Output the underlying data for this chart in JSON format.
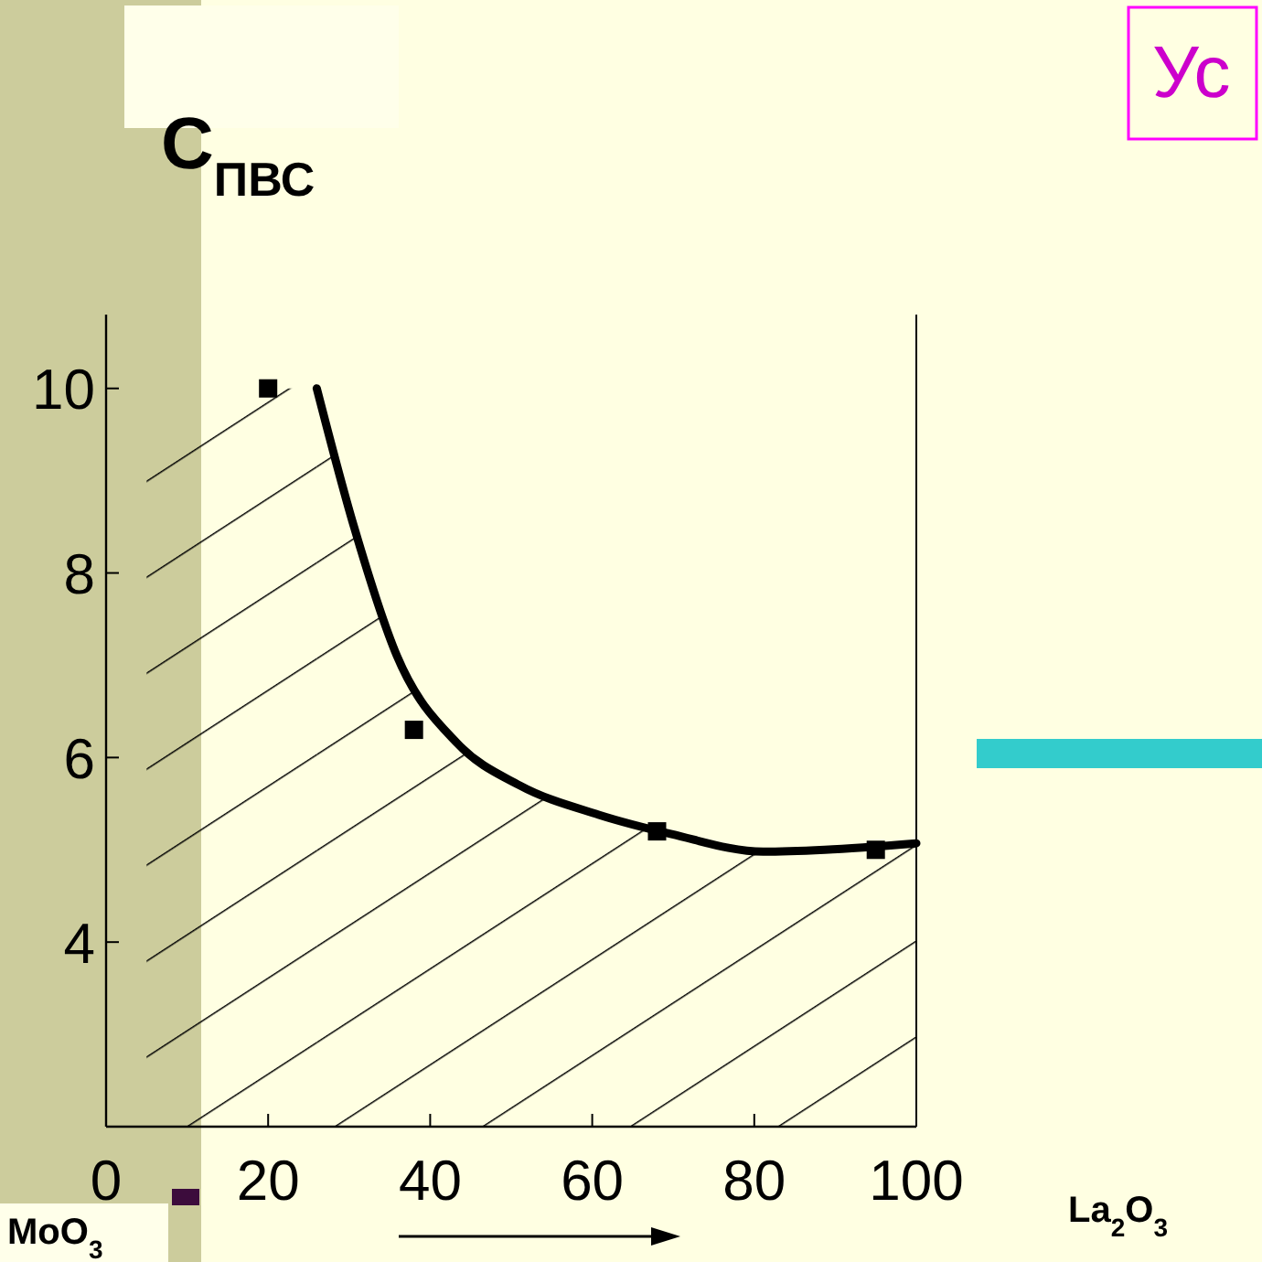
{
  "chart_data": {
    "type": "line",
    "ylabel": "C$_{ПВС}$",
    "xlabel": "La$_{2}$O$_{3}$",
    "annotations": [
      "MoO$_{3}$",
      "Ус"
    ],
    "xlim": [
      0,
      100
    ],
    "xticks": [
      0,
      20,
      40,
      60,
      80,
      100
    ],
    "ylim": [
      2,
      10.8
    ],
    "yticks": [
      4,
      6,
      8,
      10
    ],
    "grid": false,
    "series": [
      {
        "type": "area",
        "color": "#000000",
        "line_style": "solid",
        "marker": "none",
        "x": [
          26,
          30.6,
          35.9,
          43.4,
          51,
          60.8,
          69.8,
          81.1,
          88.7,
          100
        ],
        "values": [
          10,
          8.5,
          7.1,
          6.15,
          5.7,
          5.38,
          5.17,
          4.98,
          5.0,
          5.07
        ]
      },
      {
        "type": "area",
        "color": "#000000",
        "x": [
          5,
          26
        ],
        "values": [
          10,
          10
        ]
      },
      {
        "type": "scatter",
        "color": "#000000",
        "marker": "square",
        "x": [
          20,
          38,
          68,
          95
        ],
        "values": [
          10,
          6.3,
          5.2,
          5.0
        ]
      }
    ]
  }
}
